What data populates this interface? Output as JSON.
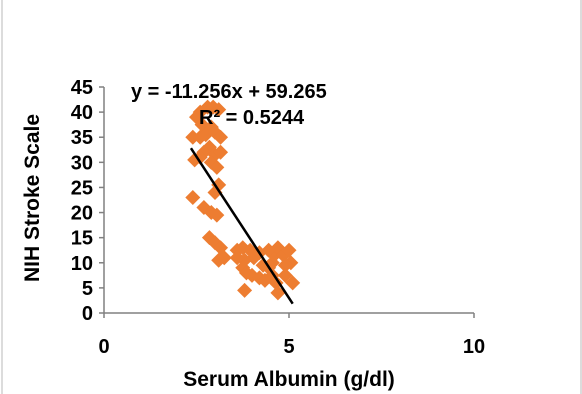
{
  "chart_data": {
    "type": "scatter",
    "xlabel": "Serum Albumin (g/dl)",
    "ylabel": "NIH Stroke Scale",
    "xlim": [
      0,
      10
    ],
    "ylim": [
      0,
      45
    ],
    "xticks": [
      "0",
      "5",
      "10"
    ],
    "yticks": [
      "0",
      "5",
      "10",
      "15",
      "20",
      "25",
      "30",
      "35",
      "40",
      "45"
    ],
    "grid": false,
    "marker_color": "#ED7D31",
    "trendline_color": "#000000",
    "trendline": {
      "slope": -11.256,
      "intercept": 59.265,
      "x_start": 2.35,
      "x_end": 5.1
    },
    "annotations": [
      "y = -11.256x + 59.265",
      "R² = 0.5244"
    ],
    "series": [
      {
        "points": [
          [
            2.6,
            40
          ],
          [
            2.8,
            41
          ],
          [
            2.95,
            41
          ],
          [
            3.1,
            40.5
          ],
          [
            2.5,
            39
          ],
          [
            2.65,
            37.5
          ],
          [
            2.9,
            37
          ],
          [
            2.4,
            35
          ],
          [
            2.6,
            35
          ],
          [
            2.75,
            35.5
          ],
          [
            3.0,
            36
          ],
          [
            3.15,
            35
          ],
          [
            2.85,
            33
          ],
          [
            2.7,
            32
          ],
          [
            3.0,
            31.5
          ],
          [
            3.15,
            32
          ],
          [
            2.45,
            30.5
          ],
          [
            2.6,
            31
          ],
          [
            2.9,
            30
          ],
          [
            3.05,
            29
          ],
          [
            3.1,
            25.5
          ],
          [
            3.0,
            24
          ],
          [
            2.4,
            23
          ],
          [
            2.7,
            21
          ],
          [
            2.9,
            20
          ],
          [
            3.05,
            19.5
          ],
          [
            2.85,
            15
          ],
          [
            3.0,
            14
          ],
          [
            3.15,
            13
          ],
          [
            3.25,
            11
          ],
          [
            3.1,
            10.5
          ],
          [
            3.6,
            12.5
          ],
          [
            3.75,
            13
          ],
          [
            3.95,
            12.5
          ],
          [
            3.6,
            11
          ],
          [
            3.8,
            10.5
          ],
          [
            4.05,
            11
          ],
          [
            4.2,
            12
          ],
          [
            3.75,
            9
          ],
          [
            3.85,
            8
          ],
          [
            4.0,
            7.5
          ],
          [
            4.3,
            9.5
          ],
          [
            4.45,
            9
          ],
          [
            4.55,
            10
          ],
          [
            4.6,
            11.5
          ],
          [
            4.7,
            13
          ],
          [
            4.45,
            12.5
          ],
          [
            4.85,
            11.5
          ],
          [
            5.0,
            12.5
          ],
          [
            5.05,
            10
          ],
          [
            4.9,
            9.5
          ],
          [
            4.2,
            7
          ],
          [
            4.35,
            6.5
          ],
          [
            4.55,
            7.5
          ],
          [
            4.65,
            6
          ],
          [
            4.9,
            7.5
          ],
          [
            5.1,
            6
          ],
          [
            3.8,
            4.5
          ],
          [
            4.7,
            4
          ]
        ]
      }
    ]
  }
}
